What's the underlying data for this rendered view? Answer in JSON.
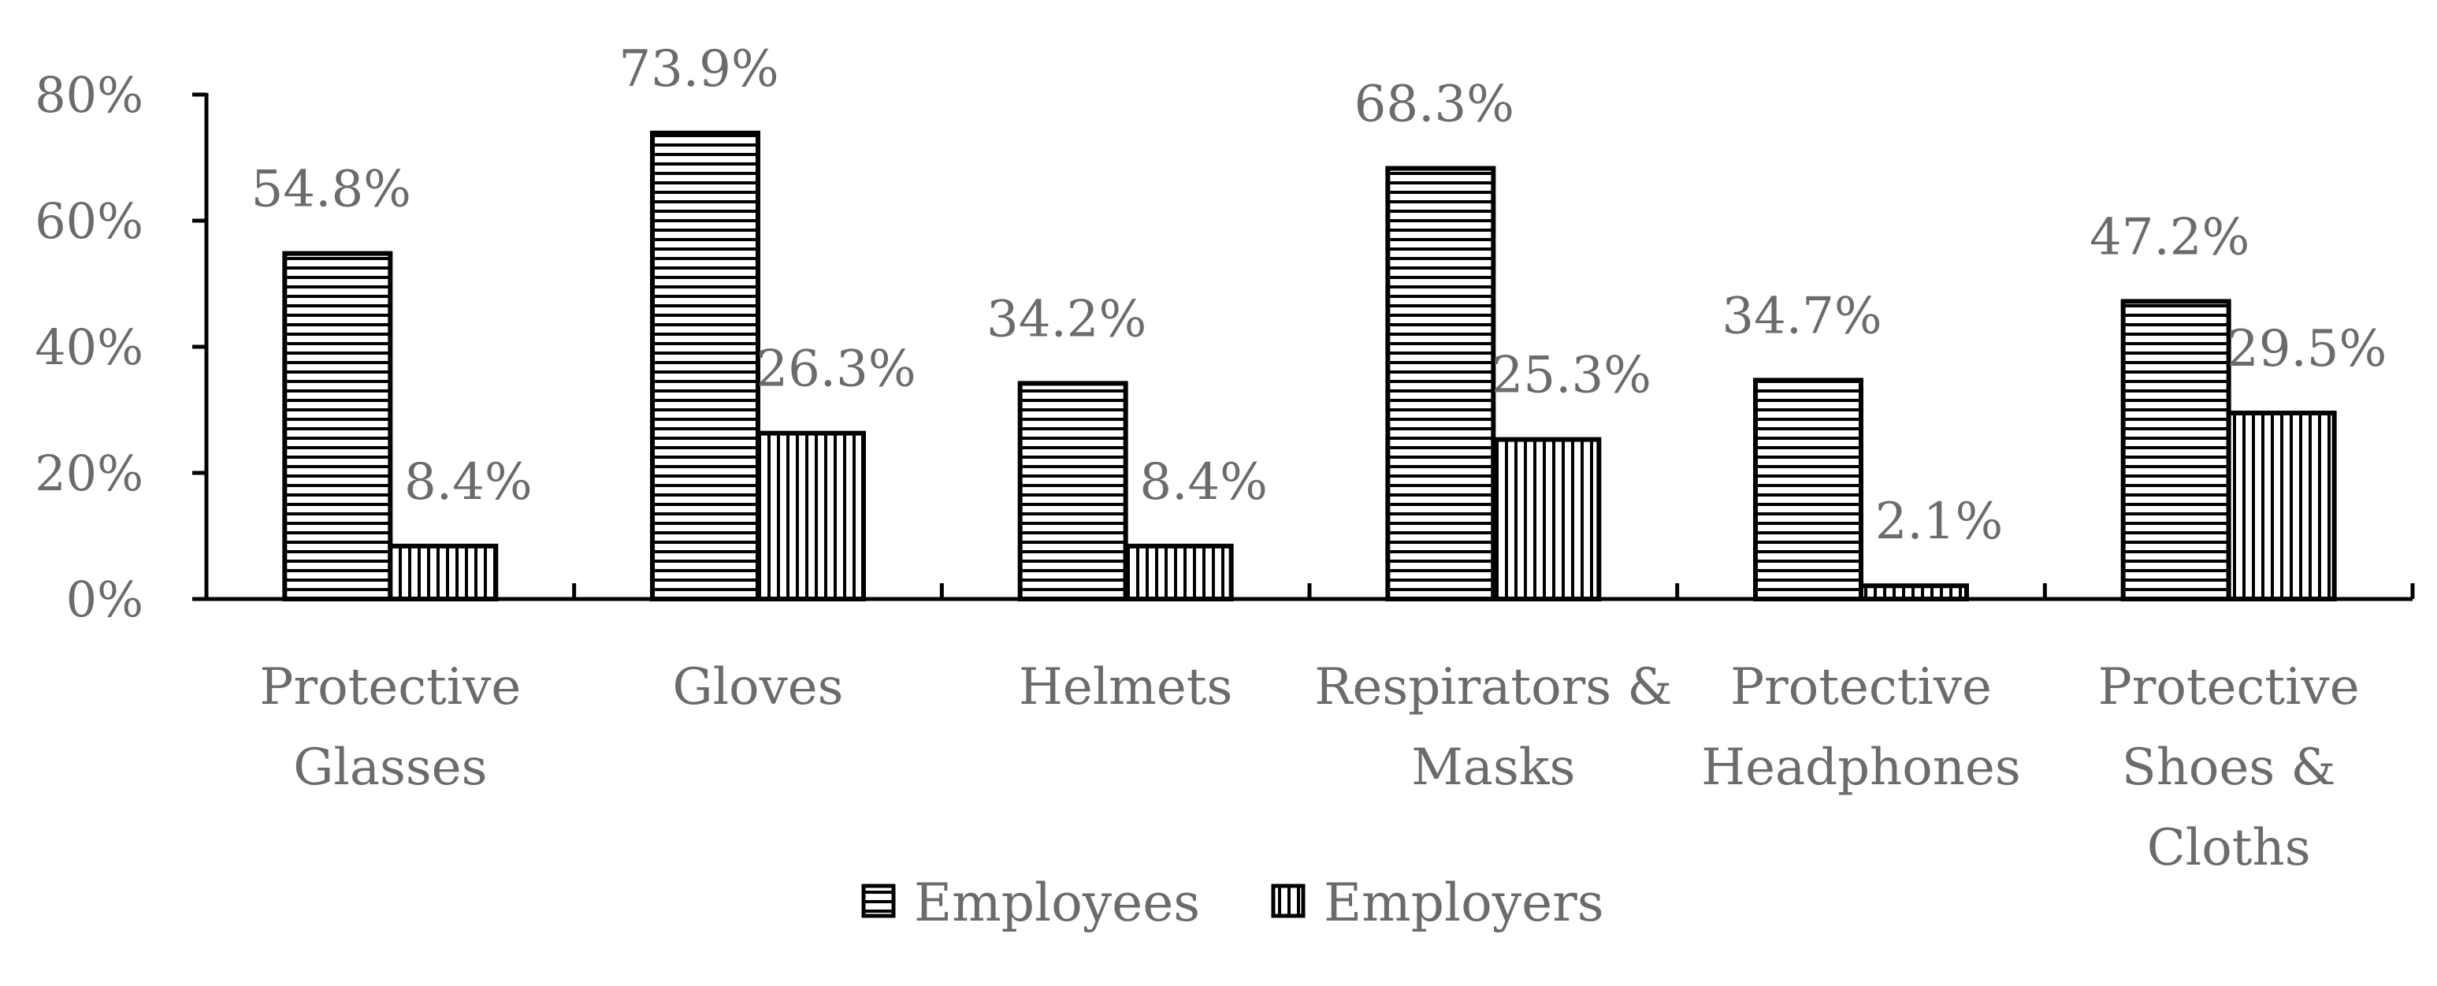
{
  "chart_data": {
    "type": "bar",
    "categories": [
      [
        "Protective",
        "Glasses"
      ],
      [
        "Gloves"
      ],
      [
        "Helmets"
      ],
      [
        "Respirators &",
        "Masks"
      ],
      [
        "Protective",
        "Headphones"
      ],
      [
        "Protective",
        "Shoes &",
        "Cloths"
      ]
    ],
    "series": [
      {
        "name": "Employees",
        "values": [
          54.8,
          73.9,
          34.2,
          68.3,
          34.7,
          47.2
        ],
        "labels": [
          "54.8%",
          "73.9%",
          "34.2%",
          "68.3%",
          "34.7%",
          "47.2%"
        ],
        "pattern": "horizontal-stripes"
      },
      {
        "name": "Employers",
        "values": [
          8.4,
          26.3,
          8.4,
          25.3,
          2.1,
          29.5
        ],
        "labels": [
          "8.4%",
          "26.3%",
          "8.4%",
          "25.3%",
          "2.1%",
          "29.5%"
        ],
        "pattern": "vertical-stripes"
      }
    ],
    "yticks": [
      "0%",
      "20%",
      "40%",
      "60%",
      "80%"
    ],
    "ylim": [
      0,
      80
    ],
    "title": "",
    "xlabel": "",
    "ylabel": "",
    "grid": false,
    "legend": "bottom-center",
    "colors": {
      "bar_stroke": "#000000",
      "bar_fill": "#ffffff",
      "text": "#6b6b6b",
      "axis": "#000000"
    }
  }
}
